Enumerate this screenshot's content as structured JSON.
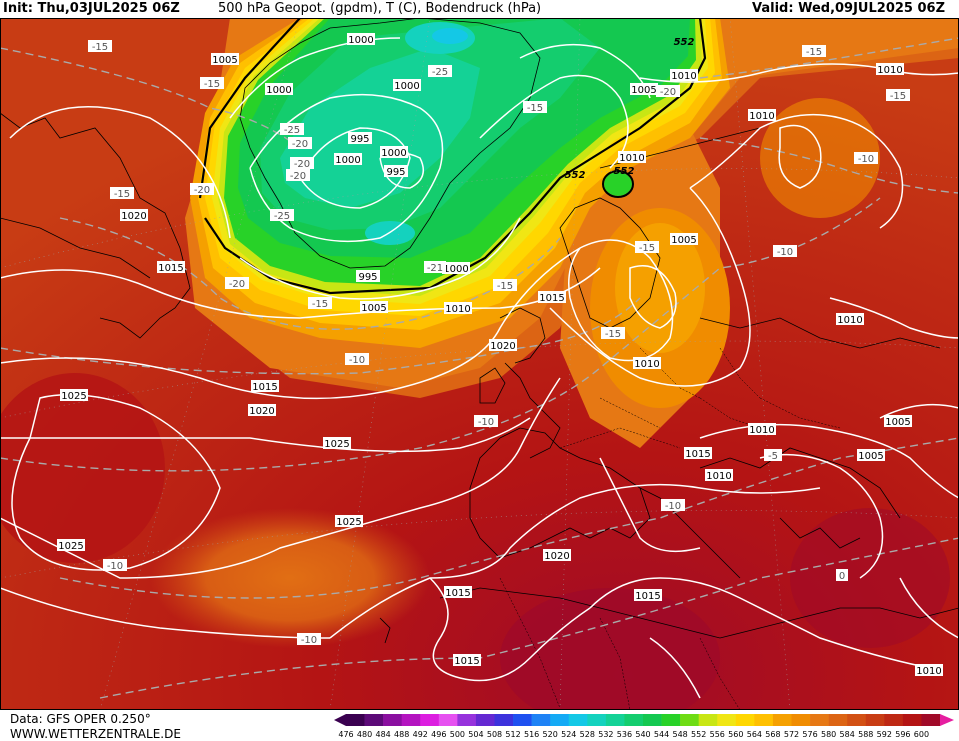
{
  "header": {
    "init": "Init: Thu,03JUL2025 06Z",
    "title": "500 hPa Geopot. (gpdm), T (C), Bodendruck (hPa)",
    "valid": "Valid: Wed,09JUL2025 06Z"
  },
  "footer": {
    "data_source": "Data: GFS OPER 0.250°",
    "website": "WWW.WETTERZENTRALE.DE"
  },
  "legend": {
    "ticks": [
      "476",
      "480",
      "484",
      "488",
      "492",
      "496",
      "500",
      "504",
      "508",
      "512",
      "516",
      "520",
      "524",
      "528",
      "532",
      "536",
      "540",
      "544",
      "548",
      "552",
      "556",
      "560",
      "564",
      "568",
      "572",
      "576",
      "580",
      "584",
      "588",
      "592",
      "596",
      "600"
    ],
    "colors": [
      "#3a0050",
      "#5c0a78",
      "#8a0fa0",
      "#b414c0",
      "#dc1ee0",
      "#e650f0",
      "#9632dc",
      "#6428d2",
      "#3c32dc",
      "#1e50f0",
      "#1e82f5",
      "#14aaf5",
      "#14c8e6",
      "#14d2be",
      "#14d296",
      "#14cd6e",
      "#14c850",
      "#28d228",
      "#6edc14",
      "#c8e614",
      "#f0e614",
      "#ffd700",
      "#ffc000",
      "#f5a000",
      "#f08c00",
      "#e67814",
      "#dc6414",
      "#d25014",
      "#c83c14",
      "#be2814",
      "#b41414",
      "#a00a28"
    ],
    "end_arrow_color": "#e61ea0"
  },
  "map": {
    "pressure_labels": [
      {
        "text": "1000",
        "id": "p1"
      },
      {
        "text": "1005",
        "id": "p2"
      },
      {
        "text": "1000",
        "id": "p3"
      },
      {
        "text": "1000",
        "id": "p4"
      },
      {
        "text": "995",
        "id": "p5"
      },
      {
        "text": "1000",
        "id": "p6"
      },
      {
        "text": "1000",
        "id": "p7"
      },
      {
        "text": "995",
        "id": "p8"
      },
      {
        "text": "995",
        "id": "p9"
      },
      {
        "text": "1000",
        "id": "p10"
      },
      {
        "text": "1020",
        "id": "p11"
      },
      {
        "text": "1015",
        "id": "p12"
      },
      {
        "text": "1005",
        "id": "p13"
      },
      {
        "text": "1010",
        "id": "p14"
      },
      {
        "text": "1015",
        "id": "p15"
      },
      {
        "text": "1020",
        "id": "p16"
      },
      {
        "text": "1015",
        "id": "p17"
      },
      {
        "text": "1020",
        "id": "p18"
      },
      {
        "text": "1025",
        "id": "p19"
      },
      {
        "text": "1025",
        "id": "p20"
      },
      {
        "text": "1025",
        "id": "p21"
      },
      {
        "text": "1025",
        "id": "p22"
      },
      {
        "text": "1020",
        "id": "p23"
      },
      {
        "text": "1015",
        "id": "p24"
      },
      {
        "text": "1015",
        "id": "p25"
      },
      {
        "text": "1015",
        "id": "p26"
      },
      {
        "text": "1010",
        "id": "p27"
      },
      {
        "text": "1005",
        "id": "p28"
      },
      {
        "text": "1010",
        "id": "p29"
      },
      {
        "text": "1010",
        "id": "p30"
      },
      {
        "text": "1010",
        "id": "p31"
      },
      {
        "text": "1010",
        "id": "p32"
      },
      {
        "text": "1005",
        "id": "p33"
      },
      {
        "text": "1010",
        "id": "p34"
      },
      {
        "text": "1010",
        "id": "p35"
      },
      {
        "text": "1015",
        "id": "p36"
      },
      {
        "text": "1010",
        "id": "p37"
      },
      {
        "text": "1005",
        "id": "p38"
      },
      {
        "text": "1005",
        "id": "p39"
      },
      {
        "text": "1010",
        "id": "p40"
      },
      {
        "text": "1010",
        "id": "p41"
      }
    ],
    "temperature_labels": [
      {
        "text": "-15",
        "id": "t1"
      },
      {
        "text": "-15",
        "id": "t2"
      },
      {
        "text": "-25",
        "id": "t3"
      },
      {
        "text": "-25",
        "id": "t4"
      },
      {
        "text": "-20",
        "id": "t5"
      },
      {
        "text": "-20",
        "id": "t6"
      },
      {
        "text": "-25",
        "id": "t7"
      },
      {
        "text": "-20",
        "id": "t8"
      },
      {
        "text": "-15",
        "id": "t9"
      },
      {
        "text": "-20",
        "id": "t10"
      },
      {
        "text": "-21",
        "id": "t11"
      },
      {
        "text": "-20",
        "id": "t12"
      },
      {
        "text": "-15",
        "id": "t13"
      },
      {
        "text": "-15",
        "id": "t14"
      },
      {
        "text": "-10",
        "id": "t15"
      },
      {
        "text": "-20",
        "id": "t16"
      },
      {
        "text": "-15",
        "id": "t17"
      },
      {
        "text": "-15",
        "id": "t18"
      },
      {
        "text": "-10",
        "id": "t19"
      },
      {
        "text": "-15",
        "id": "t20"
      },
      {
        "text": "-15",
        "id": "t21"
      },
      {
        "text": "-10",
        "id": "t22"
      },
      {
        "text": "-10",
        "id": "t23"
      },
      {
        "text": "-10",
        "id": "t24"
      },
      {
        "text": "-10",
        "id": "t25"
      },
      {
        "text": "-10",
        "id": "t26"
      },
      {
        "text": "-5",
        "id": "t27"
      },
      {
        "text": "0",
        "id": "t28"
      }
    ],
    "geopotential_labels": [
      {
        "text": "552",
        "id": "g1"
      },
      {
        "text": "552",
        "id": "g2"
      },
      {
        "text": "552",
        "id": "g3"
      }
    ]
  }
}
